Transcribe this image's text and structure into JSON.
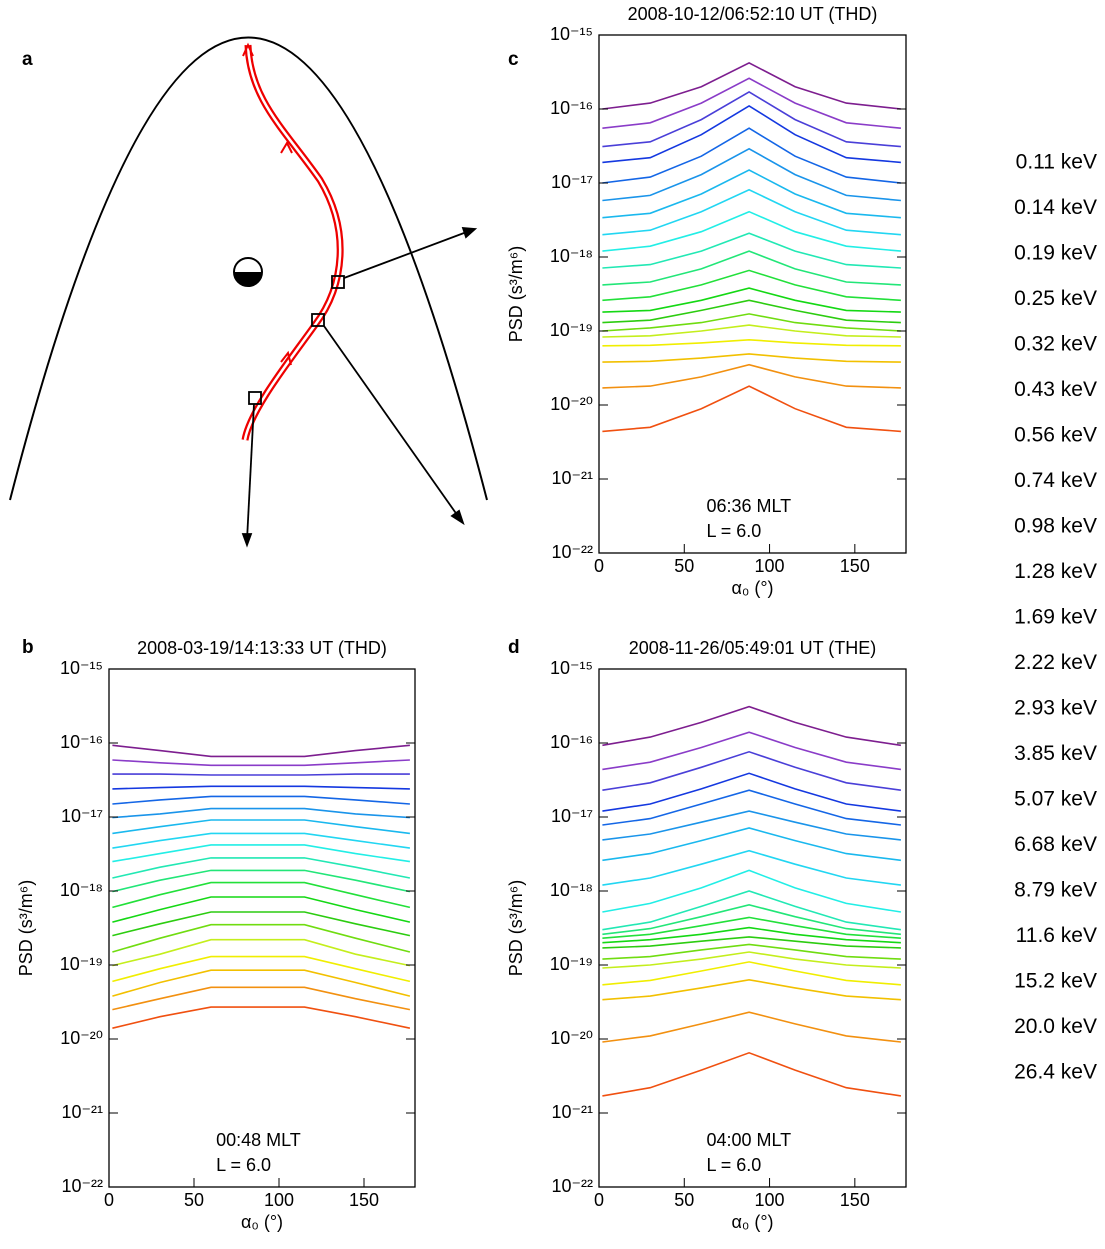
{
  "diagram": {
    "label": "a"
  },
  "legend": [
    {
      "name": "0.11 keV",
      "color": "#7d1e8f"
    },
    {
      "name": "0.14 keV",
      "color": "#8a3cc8"
    },
    {
      "name": "0.19 keV",
      "color": "#4a3fd8"
    },
    {
      "name": "0.25 keV",
      "color": "#1438e0"
    },
    {
      "name": "0.32 keV",
      "color": "#1466e6"
    },
    {
      "name": "0.43 keV",
      "color": "#1a94ea"
    },
    {
      "name": "0.56 keV",
      "color": "#1ab8ee"
    },
    {
      "name": "0.74 keV",
      "color": "#22d6f2"
    },
    {
      "name": "0.98 keV",
      "color": "#22eee6"
    },
    {
      "name": "1.28 keV",
      "color": "#22e8b4"
    },
    {
      "name": "1.69 keV",
      "color": "#22e678"
    },
    {
      "name": "2.22 keV",
      "color": "#22e03a"
    },
    {
      "name": "2.93 keV",
      "color": "#14d814"
    },
    {
      "name": "3.85 keV",
      "color": "#2ccc10"
    },
    {
      "name": "5.07 keV",
      "color": "#70dc10"
    },
    {
      "name": "6.68 keV",
      "color": "#c4ee1c"
    },
    {
      "name": "8.79 keV",
      "color": "#f0ee00"
    },
    {
      "name": "11.6 keV",
      "color": "#f2c000"
    },
    {
      "name": "15.2 keV",
      "color": "#f29010"
    },
    {
      "name": "20.0 keV",
      "color": "#f05010"
    },
    {
      "name": "26.4 keV",
      "color": "#ee0000"
    }
  ],
  "chart_data": [
    {
      "type": "line",
      "panel_label": "c",
      "title": "2008-10-12/06:52:10 UT (THD)",
      "x_label": "α₀ (°)",
      "y_label": "PSD (s³/m⁶)",
      "annotations": [
        "06:36 MLT",
        "L =  6.0"
      ],
      "yscale": "log",
      "xlim": [
        0,
        180
      ],
      "xticks": [
        0,
        50,
        100,
        150
      ],
      "ylim": [
        1e-22,
        1e-15
      ],
      "yticks": [
        {
          "value": 1e-22,
          "label": "10⁻²²"
        },
        {
          "value": 1e-21,
          "label": "10⁻²¹"
        },
        {
          "value": 1e-20,
          "label": "10⁻²⁰"
        },
        {
          "value": 1e-19,
          "label": "10⁻¹⁹"
        },
        {
          "value": 1e-18,
          "label": "10⁻¹⁸"
        },
        {
          "value": 1e-17,
          "label": "10⁻¹⁷"
        },
        {
          "value": 1e-16,
          "label": "10⁻¹⁶"
        },
        {
          "value": 1e-15,
          "label": "10⁻¹⁵"
        }
      ],
      "x": [
        2,
        30,
        60,
        88,
        115,
        145,
        177
      ],
      "series": [
        {
          "values": [
            1e-16,
            1.2e-16,
            2e-16,
            4.2e-16,
            2e-16,
            1.2e-16,
            1e-16
          ]
        },
        {
          "values": [
            5.5e-17,
            6.5e-17,
            1.2e-16,
            2.6e-16,
            1.2e-16,
            6.5e-17,
            5.5e-17
          ]
        },
        {
          "values": [
            3.1e-17,
            3.6e-17,
            7.2e-17,
            1.7e-16,
            7.2e-17,
            3.6e-17,
            3.1e-17
          ]
        },
        {
          "values": [
            1.9e-17,
            2.2e-17,
            4.5e-17,
            1.1e-16,
            4.5e-17,
            2.2e-17,
            1.9e-17
          ]
        },
        {
          "values": [
            1e-17,
            1.2e-17,
            2.3e-17,
            5.5e-17,
            2.3e-17,
            1.2e-17,
            1e-17
          ]
        },
        {
          "values": [
            5.8e-18,
            6.8e-18,
            1.3e-17,
            2.9e-17,
            1.3e-17,
            6.8e-18,
            5.8e-18
          ]
        },
        {
          "values": [
            3.4e-18,
            3.9e-18,
            7.1e-18,
            1.5e-17,
            7.1e-18,
            3.9e-18,
            3.4e-18
          ]
        },
        {
          "values": [
            2e-18,
            2.3e-18,
            4.1e-18,
            8.1e-18,
            4.1e-18,
            2.3e-18,
            2e-18
          ]
        },
        {
          "values": [
            1.2e-18,
            1.4e-18,
            2.2e-18,
            4.1e-18,
            2.2e-18,
            1.4e-18,
            1.2e-18
          ]
        },
        {
          "values": [
            7.1e-19,
            7.9e-19,
            1.2e-18,
            2.1e-18,
            1.2e-18,
            7.9e-19,
            7.1e-19
          ]
        },
        {
          "values": [
            4.2e-19,
            4.6e-19,
            6.9e-19,
            1.2e-18,
            6.9e-19,
            4.6e-19,
            4.2e-19
          ]
        },
        {
          "values": [
            2.6e-19,
            2.9e-19,
            4.2e-19,
            6.6e-19,
            4.2e-19,
            2.9e-19,
            2.6e-19
          ]
        },
        {
          "values": [
            1.8e-19,
            1.9e-19,
            2.6e-19,
            3.8e-19,
            2.6e-19,
            1.9e-19,
            1.8e-19
          ]
        },
        {
          "values": [
            1.3e-19,
            1.4e-19,
            1.9e-19,
            2.6e-19,
            1.9e-19,
            1.4e-19,
            1.3e-19
          ]
        },
        {
          "values": [
            1e-19,
            1.1e-19,
            1.3e-19,
            1.7e-19,
            1.3e-19,
            1.1e-19,
            1e-19
          ]
        },
        {
          "values": [
            8.3e-20,
            8.6e-20,
            1e-19,
            1.2e-19,
            1e-19,
            8.6e-20,
            8.3e-20
          ]
        },
        {
          "values": [
            6.3e-20,
            6.4e-20,
            6.9e-20,
            7.6e-20,
            6.9e-20,
            6.4e-20,
            6.3e-20
          ]
        },
        {
          "values": [
            3.8e-20,
            3.9e-20,
            4.3e-20,
            4.9e-20,
            4.3e-20,
            3.9e-20,
            3.8e-20
          ]
        },
        {
          "values": [
            1.7e-20,
            1.8e-20,
            2.4e-20,
            3.5e-20,
            2.4e-20,
            1.8e-20,
            1.7e-20
          ]
        },
        {
          "values": [
            4.4e-21,
            5e-21,
            8.9e-21,
            1.8e-20,
            8.9e-21,
            5e-21,
            4.4e-21
          ]
        }
      ]
    },
    {
      "type": "line",
      "panel_label": "b",
      "title": "2008-03-19/14:13:33 UT (THD)",
      "x_label": "α₀ (°)",
      "y_label": "PSD (s³/m⁶)",
      "annotations": [
        "00:48 MLT",
        "L = 6.0"
      ],
      "yscale": "log",
      "xlim": [
        0,
        180
      ],
      "xticks": [
        0,
        50,
        100,
        150
      ],
      "ylim": [
        1e-22,
        1e-15
      ],
      "yticks": [
        {
          "value": 1e-22,
          "label": "10⁻²²"
        },
        {
          "value": 1e-21,
          "label": "10⁻²¹"
        },
        {
          "value": 1e-20,
          "label": "10⁻²⁰"
        },
        {
          "value": 1e-19,
          "label": "10⁻¹⁹"
        },
        {
          "value": 1e-18,
          "label": "10⁻¹⁸"
        },
        {
          "value": 1e-17,
          "label": "10⁻¹⁷"
        },
        {
          "value": 1e-16,
          "label": "10⁻¹⁶"
        },
        {
          "value": 1e-15,
          "label": "10⁻¹⁵"
        }
      ],
      "x": [
        2,
        30,
        60,
        88,
        115,
        145,
        177
      ],
      "series": [
        {
          "values": [
            9.3e-17,
            7.9e-17,
            6.6e-17,
            6.6e-17,
            6.6e-17,
            7.9e-17,
            9.3e-17
          ]
        },
        {
          "values": [
            5.9e-17,
            5.4e-17,
            5e-17,
            5e-17,
            5e-17,
            5.4e-17,
            5.9e-17
          ]
        },
        {
          "values": [
            3.8e-17,
            3.8e-17,
            3.7e-17,
            3.7e-17,
            3.7e-17,
            3.8e-17,
            3.8e-17
          ]
        },
        {
          "values": [
            2.4e-17,
            2.5e-17,
            2.6e-17,
            2.6e-17,
            2.6e-17,
            2.5e-17,
            2.4e-17
          ]
        },
        {
          "values": [
            1.5e-17,
            1.7e-17,
            1.9e-17,
            1.9e-17,
            1.9e-17,
            1.7e-17,
            1.5e-17
          ]
        },
        {
          "values": [
            9.8e-18,
            1.1e-17,
            1.3e-17,
            1.3e-17,
            1.3e-17,
            1.1e-17,
            9.8e-18
          ]
        },
        {
          "values": [
            6e-18,
            7.4e-18,
            9.1e-18,
            9.1e-18,
            9.1e-18,
            7.4e-18,
            6e-18
          ]
        },
        {
          "values": [
            3.8e-18,
            4.8e-18,
            6e-18,
            6e-18,
            6e-18,
            4.8e-18,
            3.8e-18
          ]
        },
        {
          "values": [
            2.5e-18,
            3.2e-18,
            4.2e-18,
            4.2e-18,
            4.2e-18,
            3.2e-18,
            2.5e-18
          ]
        },
        {
          "values": [
            1.5e-18,
            2.1e-18,
            2.8e-18,
            2.8e-18,
            2.8e-18,
            2.1e-18,
            1.5e-18
          ]
        },
        {
          "values": [
            9.8e-19,
            1.4e-18,
            1.9e-18,
            1.9e-18,
            1.9e-18,
            1.4e-18,
            9.8e-19
          ]
        },
        {
          "values": [
            6e-19,
            8.9e-19,
            1.3e-18,
            1.3e-18,
            1.3e-18,
            8.9e-19,
            6e-19
          ]
        },
        {
          "values": [
            3.8e-19,
            5.6e-19,
            8.3e-19,
            8.3e-19,
            8.3e-19,
            5.6e-19,
            3.8e-19
          ]
        },
        {
          "values": [
            2.5e-19,
            3.6e-19,
            5.2e-19,
            5.2e-19,
            5.2e-19,
            3.6e-19,
            2.5e-19
          ]
        },
        {
          "values": [
            1.5e-19,
            2.3e-19,
            3.5e-19,
            3.5e-19,
            3.5e-19,
            2.3e-19,
            1.5e-19
          ]
        },
        {
          "values": [
            9.8e-20,
            1.4e-19,
            2.2e-19,
            2.2e-19,
            2.2e-19,
            1.4e-19,
            9.8e-20
          ]
        },
        {
          "values": [
            6e-20,
            8.9e-20,
            1.3e-19,
            1.3e-19,
            1.3e-19,
            8.9e-20,
            6e-20
          ]
        },
        {
          "values": [
            3.8e-20,
            5.8e-20,
            8.5e-20,
            8.5e-20,
            8.5e-20,
            5.8e-20,
            3.8e-20
          ]
        },
        {
          "values": [
            2.5e-20,
            3.5e-20,
            5e-20,
            5e-20,
            5e-20,
            3.5e-20,
            2.5e-20
          ]
        },
        {
          "values": [
            1.4e-20,
            2e-20,
            2.7e-20,
            2.7e-20,
            2.7e-20,
            2e-20,
            1.4e-20
          ]
        }
      ]
    },
    {
      "type": "line",
      "panel_label": "d",
      "title": "2008-11-26/05:49:01 UT (THE)",
      "x_label": "α₀ (°)",
      "y_label": "PSD (s³/m⁶)",
      "annotations": [
        "04:00 MLT",
        "L = 6.0"
      ],
      "yscale": "log",
      "xlim": [
        0,
        180
      ],
      "xticks": [
        0,
        50,
        100,
        150
      ],
      "ylim": [
        1e-22,
        1e-15
      ],
      "yticks": [
        {
          "value": 1e-22,
          "label": "10⁻²²"
        },
        {
          "value": 1e-21,
          "label": "10⁻²¹"
        },
        {
          "value": 1e-20,
          "label": "10⁻²⁰"
        },
        {
          "value": 1e-19,
          "label": "10⁻¹⁹"
        },
        {
          "value": 1e-18,
          "label": "10⁻¹⁸"
        },
        {
          "value": 1e-17,
          "label": "10⁻¹⁷"
        },
        {
          "value": 1e-16,
          "label": "10⁻¹⁶"
        },
        {
          "value": 1e-15,
          "label": "10⁻¹⁵"
        }
      ],
      "x": [
        2,
        30,
        60,
        88,
        115,
        145,
        177
      ],
      "series": [
        {
          "values": [
            9.3e-17,
            1.2e-16,
            1.9e-16,
            3.1e-16,
            1.9e-16,
            1.2e-16,
            9.3e-17
          ]
        },
        {
          "values": [
            4.4e-17,
            5.5e-17,
            8.7e-17,
            1.4e-16,
            8.7e-17,
            5.5e-17,
            4.4e-17
          ]
        },
        {
          "values": [
            2.3e-17,
            2.9e-17,
            4.7e-17,
            7.6e-17,
            4.7e-17,
            2.9e-17,
            2.3e-17
          ]
        },
        {
          "values": [
            1.2e-17,
            1.5e-17,
            2.4e-17,
            3.9e-17,
            2.4e-17,
            1.5e-17,
            1.2e-17
          ]
        },
        {
          "values": [
            7.8e-18,
            9.5e-18,
            1.5e-17,
            2.3e-17,
            1.5e-17,
            9.5e-18,
            7.8e-18
          ]
        },
        {
          "values": [
            4.9e-18,
            5.9e-18,
            8.5e-18,
            1.2e-17,
            8.5e-18,
            5.9e-18,
            4.9e-18
          ]
        },
        {
          "values": [
            2.6e-18,
            3.2e-18,
            4.8e-18,
            7.1e-18,
            4.8e-18,
            3.2e-18,
            2.6e-18
          ]
        },
        {
          "values": [
            1.2e-18,
            1.5e-18,
            2.3e-18,
            3.5e-18,
            2.3e-18,
            1.5e-18,
            1.2e-18
          ]
        },
        {
          "values": [
            5.2e-19,
            6.8e-19,
            1.1e-18,
            1.9e-18,
            1.1e-18,
            6.8e-19,
            5.2e-19
          ]
        },
        {
          "values": [
            3e-19,
            3.8e-19,
            6.2e-19,
            1e-18,
            6.2e-19,
            3.8e-19,
            3e-19
          ]
        },
        {
          "values": [
            2.6e-19,
            3.1e-19,
            4.5e-19,
            6.5e-19,
            4.5e-19,
            3.1e-19,
            2.6e-19
          ]
        },
        {
          "values": [
            2.3e-19,
            2.6e-19,
            3.4e-19,
            4.4e-19,
            3.4e-19,
            2.6e-19,
            2.3e-19
          ]
        },
        {
          "values": [
            2e-19,
            2.2e-19,
            2.6e-19,
            3.2e-19,
            2.6e-19,
            2.2e-19,
            2e-19
          ]
        },
        {
          "values": [
            1.7e-19,
            1.8e-19,
            2.1e-19,
            2.4e-19,
            2.1e-19,
            1.8e-19,
            1.7e-19
          ]
        },
        {
          "values": [
            1.2e-19,
            1.3e-19,
            1.6e-19,
            1.9e-19,
            1.6e-19,
            1.3e-19,
            1.2e-19
          ]
        },
        {
          "values": [
            9.1e-20,
            1e-19,
            1.2e-19,
            1.5e-19,
            1.2e-19,
            1e-19,
            9.1e-20
          ]
        },
        {
          "values": [
            5.4e-20,
            6.2e-20,
            8.3e-20,
            1.1e-19,
            8.3e-20,
            6.2e-20,
            5.4e-20
          ]
        },
        {
          "values": [
            3.4e-20,
            3.8e-20,
            4.9e-20,
            6.3e-20,
            4.9e-20,
            3.8e-20,
            3.4e-20
          ]
        },
        {
          "values": [
            9.1e-21,
            1.1e-20,
            1.6e-20,
            2.3e-20,
            1.6e-20,
            1.1e-20,
            9.1e-21
          ]
        },
        {
          "values": [
            1.7e-21,
            2.2e-21,
            3.8e-21,
            6.5e-21,
            3.8e-21,
            2.2e-21,
            1.7e-21
          ]
        }
      ]
    }
  ]
}
